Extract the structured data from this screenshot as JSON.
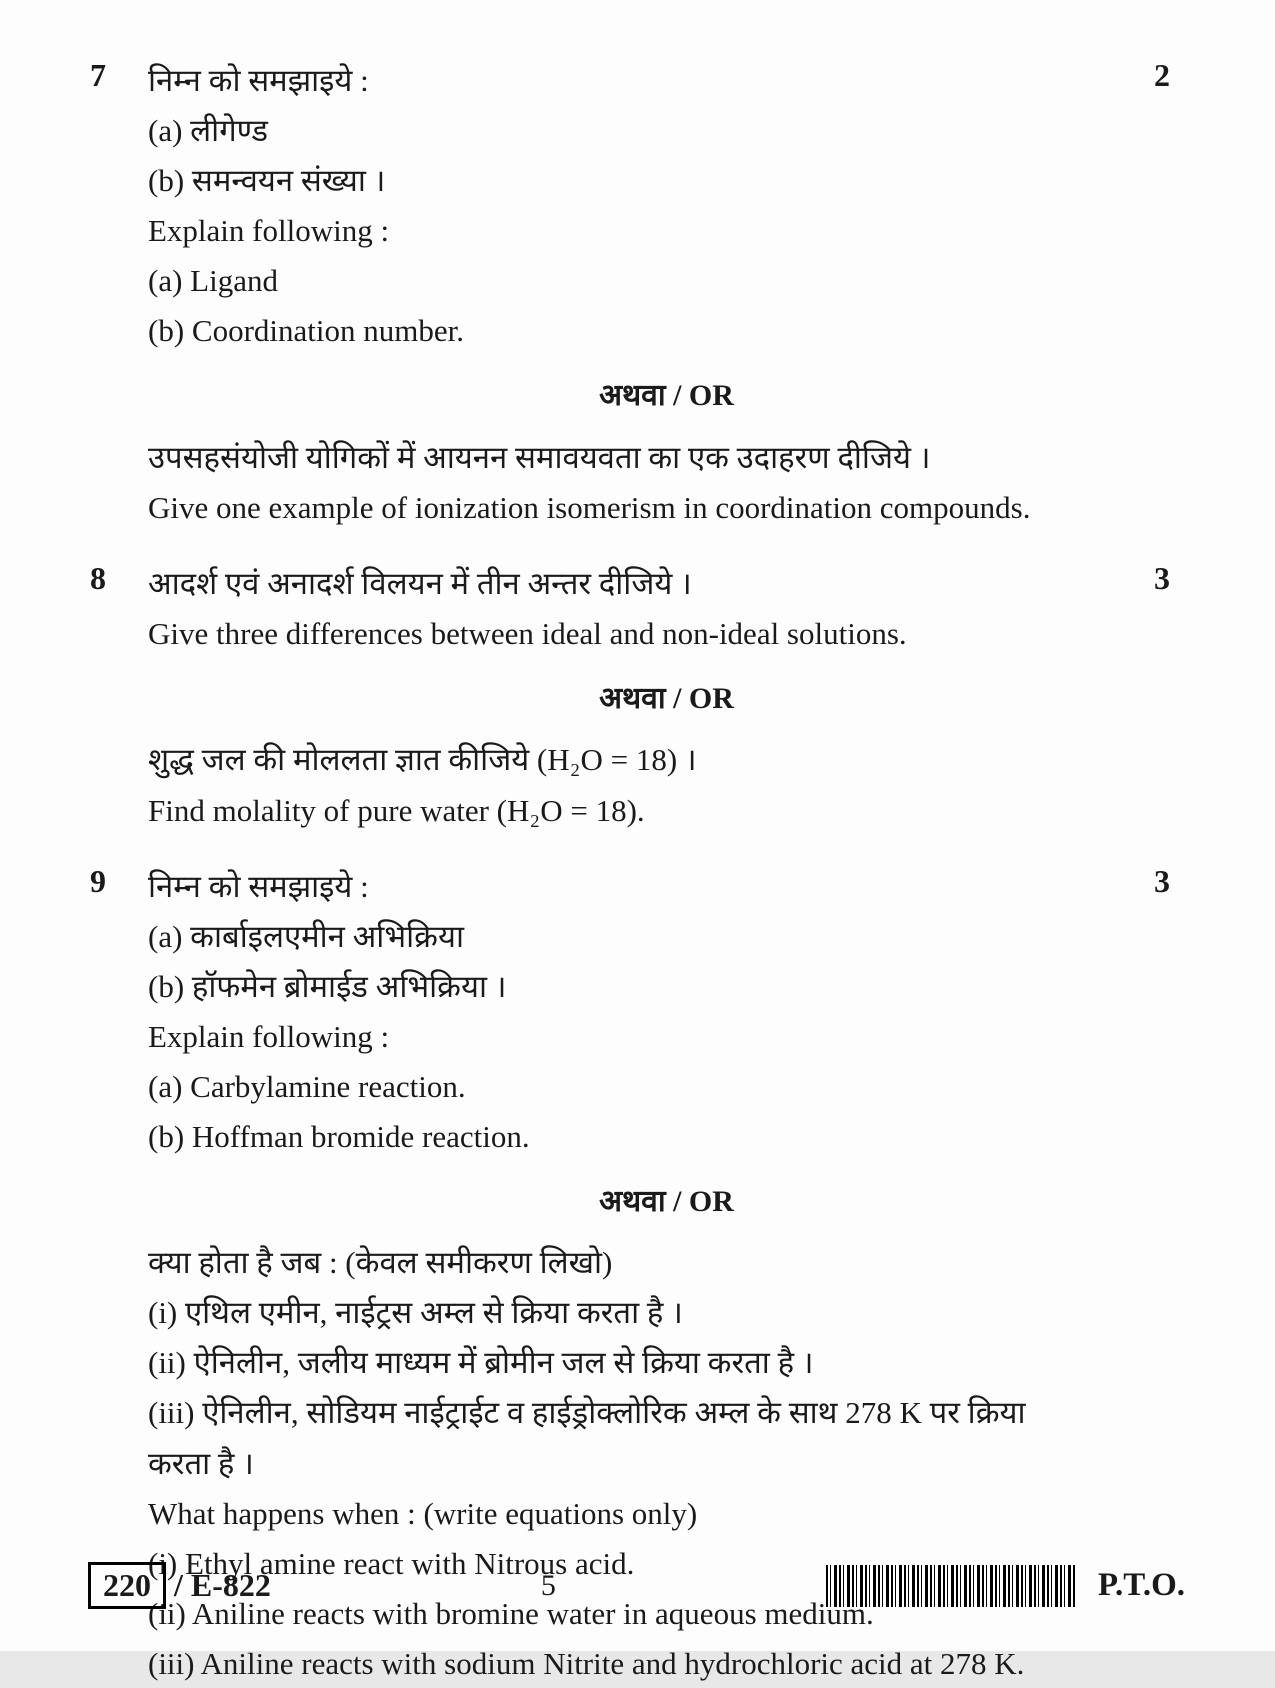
{
  "background_color": "#fdfdfd",
  "text_color": "#1a1a1a",
  "font_family": "Times New Roman, serif",
  "base_fontsize": 31,
  "questions": [
    {
      "number": "7",
      "marks": "2",
      "hi_intro": "निम्न को समझाइये :",
      "hi_a": "(a)   लीगेण्ड",
      "hi_b": "(b)   समन्वयन संख्या ।",
      "en_intro": "Explain following :",
      "en_a": "(a)   Ligand",
      "en_b": "(b)   Coordination number.",
      "or_label": "अथवा / OR",
      "alt_hi": "उपसहसंयोजी योगिकों में आयनन समावयवता का एक उदाहरण दीजिये ।",
      "alt_en": "Give one example of ionization isomerism in coordination compounds."
    },
    {
      "number": "8",
      "marks": "3",
      "hi_intro": "आदर्श एवं अनादर्श विलयन में तीन अन्तर दीजिये ।",
      "en_intro": "Give three differences between ideal and non-ideal solutions.",
      "or_label": "अथवा / OR",
      "alt_hi": "शुद्ध जल की मोललता ज्ञात कीजिये (H₂O = 18) ।",
      "alt_en": "Find molality of pure water (H₂O = 18)."
    },
    {
      "number": "9",
      "marks": "3",
      "hi_intro": "निम्न को समझाइये :",
      "hi_a": "(a)   कार्बाइलएमीन अभिक्रिया",
      "hi_b": "(b)   हॉफमेन ब्रोमाईड अभिक्रिया ।",
      "en_intro": "Explain following :",
      "en_a": "(a)   Carbylamine reaction.",
      "en_b": "(b)   Hoffman bromide reaction.",
      "or_label": "अथवा / OR",
      "alt_hi_head": "क्या होता है जब : (केवल समीकरण लिखो)",
      "alt_hi_i": "(i)    एथिल एमीन, नाईट्रस अम्ल से क्रिया करता है ।",
      "alt_hi_ii": "(ii)   ऐनिलीन, जलीय माध्यम में ब्रोमीन जल से क्रिया करता है ।",
      "alt_hi_iii_a": "(iii)  ऐनिलीन, सोडियम नाईट्राईट व हाईड्रोक्लोरिक अम्ल के साथ 278 K पर क्रिया",
      "alt_hi_iii_b": "        करता है ।",
      "alt_en_head": "What happens when : (write equations only)",
      "alt_en_i": "(i)    Ethyl amine react with Nitrous acid.",
      "alt_en_ii": "(ii)   Aniline reacts with bromine water in aqueous medium.",
      "alt_en_iii": "(iii)  Aniline reacts with sodium Nitrite and hydrochloric acid at 278 K."
    }
  ],
  "footer": {
    "code_box": "220",
    "paper_code": "/ E-822",
    "page_number": "5",
    "pto": "P.T.O."
  }
}
